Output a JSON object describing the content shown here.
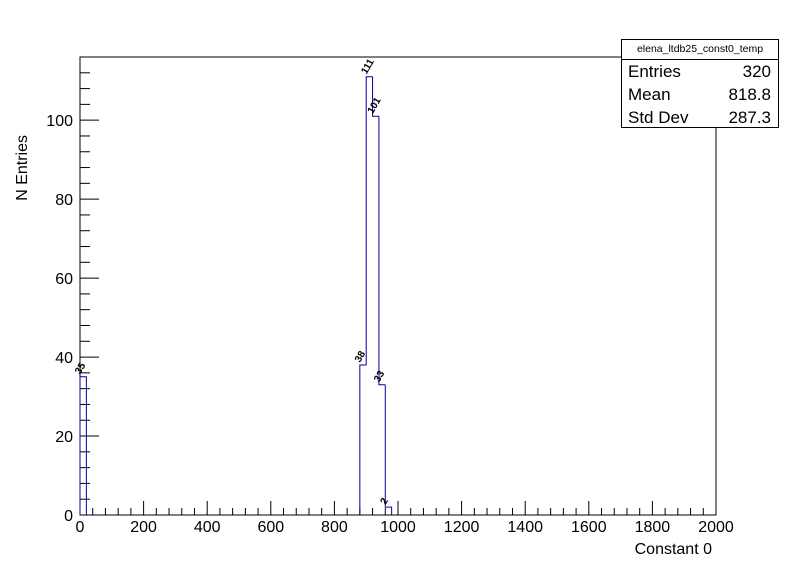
{
  "chart_data": {
    "type": "bar",
    "histogram_name": "elena_ltdb25_const0_temp",
    "xlabel": "Constant 0",
    "ylabel": "N Entries",
    "xlim": [
      0,
      2000
    ],
    "ylim": [
      0,
      116
    ],
    "x_ticks": [
      "0",
      "200",
      "400",
      "600",
      "800",
      "1000",
      "1200",
      "1400",
      "1600",
      "1800",
      "2000"
    ],
    "y_ticks": [
      "0",
      "20",
      "40",
      "60",
      "80",
      "100"
    ],
    "bin_width": 20,
    "bins": [
      {
        "x_low": 0,
        "x_high": 20,
        "value": 35,
        "label": "35"
      },
      {
        "x_low": 880,
        "x_high": 900,
        "value": 38,
        "label": "38"
      },
      {
        "x_low": 900,
        "x_high": 920,
        "value": 111,
        "label": "111"
      },
      {
        "x_low": 920,
        "x_high": 940,
        "value": 101,
        "label": "101"
      },
      {
        "x_low": 940,
        "x_high": 960,
        "value": 33,
        "label": "33"
      },
      {
        "x_low": 960,
        "x_high": 980,
        "value": 2,
        "label": "2"
      }
    ],
    "line_color": "#000099",
    "grid": false
  },
  "stats": {
    "title": "elena_ltdb25_const0_temp",
    "entries_label": "Entries",
    "entries_value": "320",
    "mean_label": "Mean",
    "mean_value": "818.8",
    "stddev_label": "Std Dev",
    "stddev_value": "287.3"
  }
}
